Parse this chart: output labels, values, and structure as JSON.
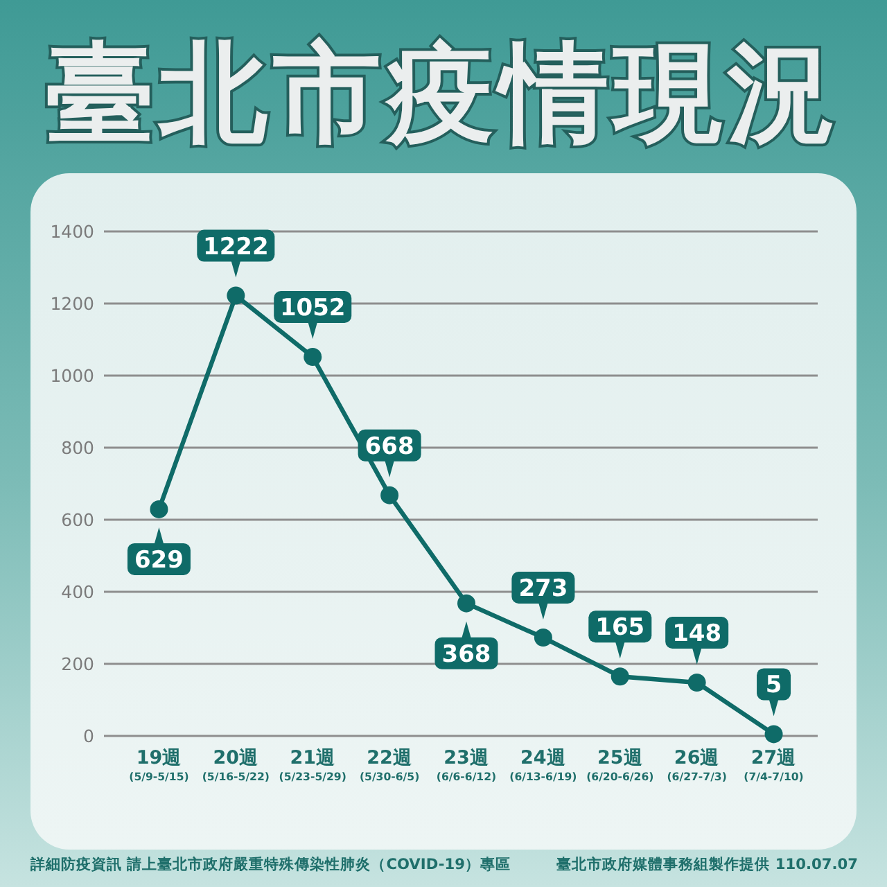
{
  "chart_data": {
    "type": "line",
    "title": "臺北市疫情現況",
    "categories": [
      "19週\n(5/9-5/15)",
      "20週\n(5/16-5/22)",
      "21週\n(5/23-5/29)",
      "22週\n(5/30-6/5)",
      "23週\n(6/6-6/12)",
      "24週\n(6/13-6/19)",
      "25週\n(6/20-6/26)",
      "26週\n(6/27-7/3)",
      "27週\n(7/4-7/10)"
    ],
    "values": [
      629,
      1222,
      1052,
      668,
      368,
      273,
      165,
      148,
      5
    ],
    "color": "#0f6b68",
    "ylim": [
      0,
      1400
    ],
    "yticks": [
      0,
      200,
      400,
      600,
      800,
      1000,
      1200,
      1400
    ],
    "grid": "y",
    "marker": "circle",
    "line_style": "solid",
    "data_labels": true,
    "annotations": [
      "詳細防疫資訊 請上臺北市政府嚴重特殊傳染性肺炎（COVID-19）專區",
      "臺北市政府媒體事務組製作提供 110.07.07"
    ]
  }
}
